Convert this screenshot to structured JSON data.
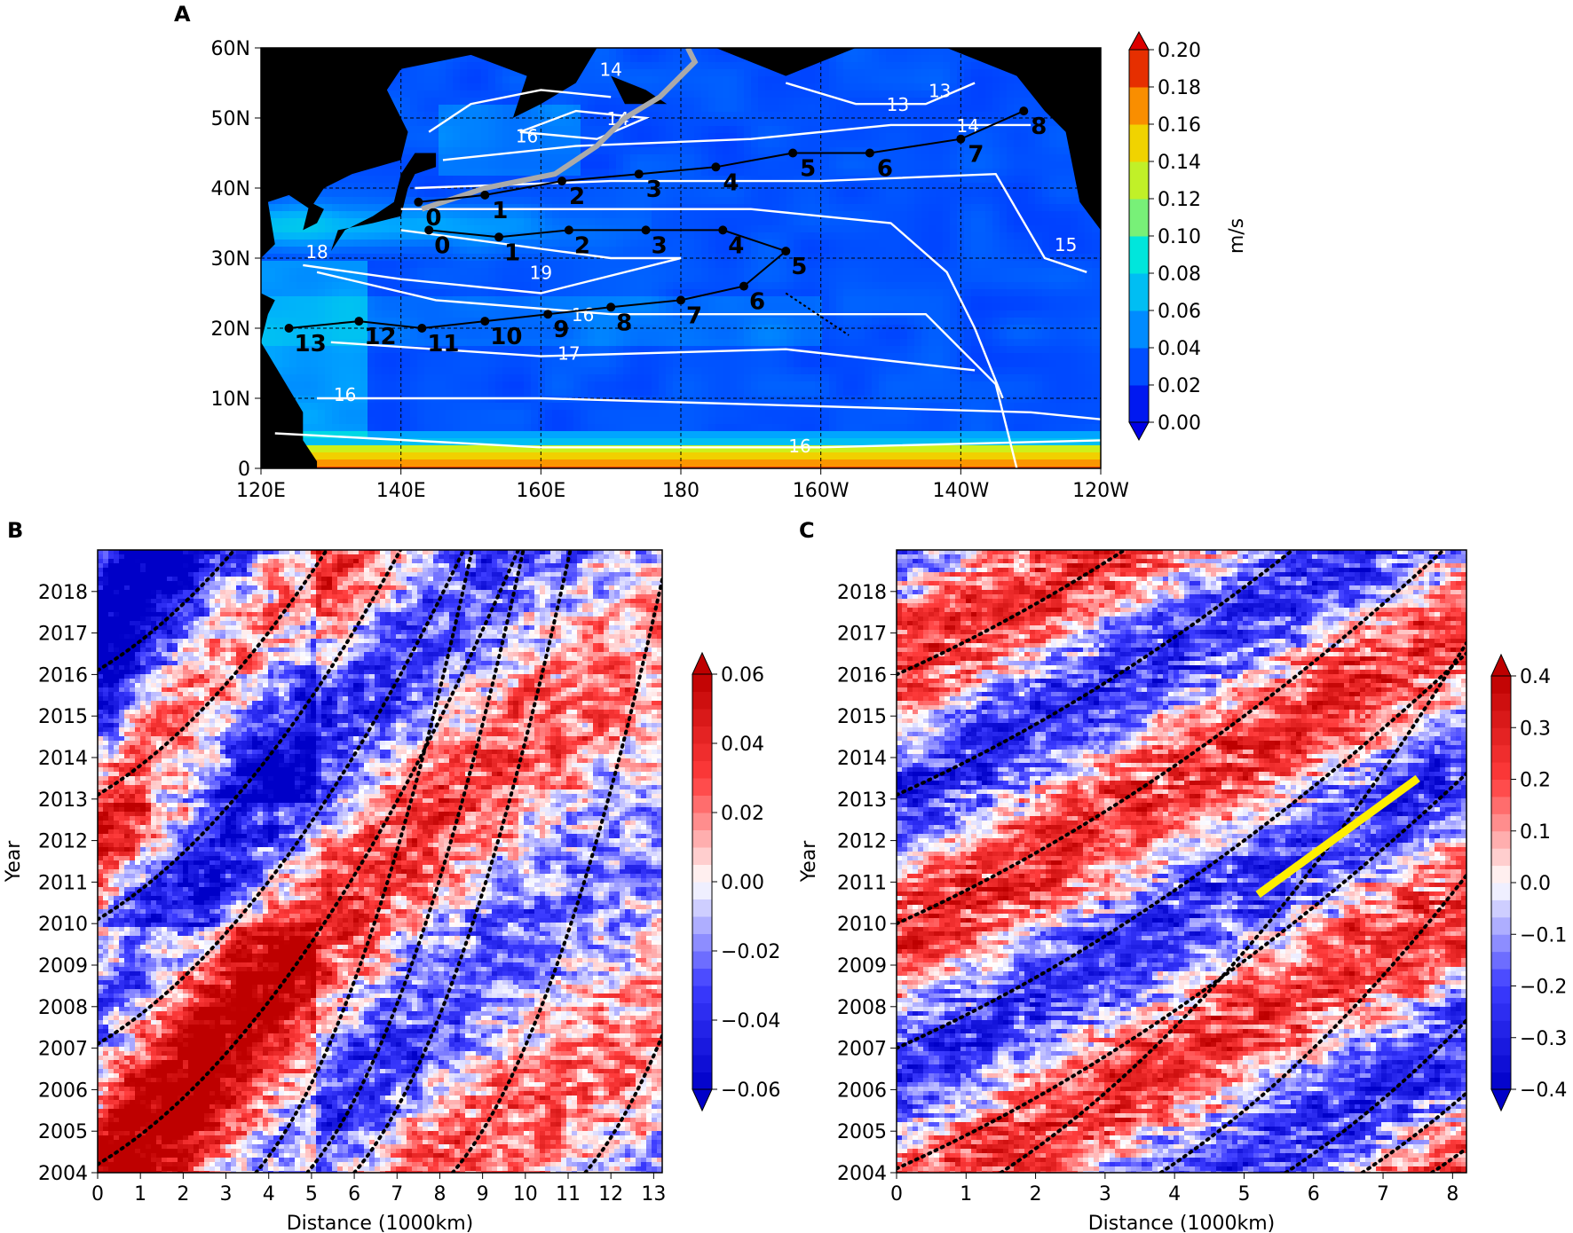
{
  "panels": {
    "A": {
      "letter": "A",
      "xticks": [
        "120E",
        "140E",
        "160E",
        "180",
        "160W",
        "140W",
        "120W"
      ],
      "yticks": [
        "0",
        "10N",
        "20N",
        "30N",
        "40N",
        "50N",
        "60N"
      ],
      "colorbar": {
        "label": "m/s",
        "ticks": [
          "0.00",
          "0.02",
          "0.04",
          "0.06",
          "0.08",
          "0.10",
          "0.12",
          "0.14",
          "0.16",
          "0.18",
          "0.20"
        ]
      },
      "contour_labels": [
        "14",
        "14",
        "13",
        "13",
        "14",
        "15",
        "16",
        "19",
        "18",
        "16",
        "17",
        "16",
        "16"
      ],
      "route_north_labels": [
        "0",
        "1",
        "2",
        "3",
        "4",
        "5",
        "6",
        "7",
        "8"
      ],
      "route_south_labels": [
        "0",
        "1",
        "2",
        "3",
        "4",
        "5",
        "6",
        "7",
        "8",
        "9",
        "10",
        "11",
        "12",
        "13"
      ]
    },
    "B": {
      "letter": "B",
      "ylabel": "Year",
      "xlabel": "Distance (1000km)",
      "xticks": [
        "0",
        "1",
        "2",
        "3",
        "4",
        "5",
        "6",
        "7",
        "8",
        "9",
        "10",
        "11",
        "12",
        "13"
      ],
      "yticks": [
        "2004",
        "2005",
        "2006",
        "2007",
        "2008",
        "2009",
        "2010",
        "2011",
        "2012",
        "2013",
        "2014",
        "2015",
        "2016",
        "2017",
        "2018"
      ],
      "colorbar": {
        "ticks": [
          "−0.06",
          "−0.04",
          "−0.02",
          "0.00",
          "0.02",
          "0.04",
          "0.06"
        ]
      }
    },
    "C": {
      "letter": "C",
      "ylabel": "Year",
      "xlabel": "Distance (1000km)",
      "xticks": [
        "0",
        "1",
        "2",
        "3",
        "4",
        "5",
        "6",
        "7",
        "8"
      ],
      "yticks": [
        "2004",
        "2005",
        "2006",
        "2007",
        "2008",
        "2009",
        "2010",
        "2011",
        "2012",
        "2013",
        "2014",
        "2015",
        "2016",
        "2017",
        "2018"
      ],
      "colorbar": {
        "ticks": [
          "−0.4",
          "−0.3",
          "−0.2",
          "−0.1",
          "0.0",
          "0.1",
          "0.2",
          "0.3",
          "0.4"
        ]
      }
    }
  },
  "chart_data": [
    {
      "type": "heatmap",
      "panel": "A",
      "xlim": [
        120,
        240
      ],
      "ylim": [
        0,
        60
      ],
      "colorbar_range": [
        0,
        0.2
      ],
      "unit": "m/s",
      "route_north": [
        [
          142.5,
          38
        ],
        [
          152,
          39
        ],
        [
          163,
          41
        ],
        [
          174,
          42
        ],
        [
          185,
          43
        ],
        [
          196,
          45
        ],
        [
          207,
          45
        ],
        [
          220,
          47
        ],
        [
          229,
          51
        ]
      ],
      "route_south": [
        [
          144,
          34
        ],
        [
          154,
          33
        ],
        [
          164,
          34
        ],
        [
          175,
          34
        ],
        [
          186,
          34
        ],
        [
          195,
          31
        ],
        [
          189,
          26
        ],
        [
          180,
          24
        ],
        [
          170,
          23
        ],
        [
          161,
          22
        ],
        [
          152,
          21
        ],
        [
          143,
          20
        ],
        [
          134,
          21
        ],
        [
          124,
          20
        ]
      ],
      "colors": {
        "north_track": "#aaaaaa",
        "route": "#000000",
        "contours": "#ffffff"
      }
    },
    {
      "type": "heatmap",
      "panel": "B",
      "xlim": [
        0,
        13.2
      ],
      "ylim": [
        2004,
        2019
      ],
      "colorbar_range": [
        -0.06,
        0.06
      ],
      "colormap": "seismic"
    },
    {
      "type": "heatmap",
      "panel": "C",
      "xlim": [
        0,
        8.2
      ],
      "ylim": [
        2004,
        2019
      ],
      "colorbar_range": [
        -0.4,
        0.4
      ],
      "colormap": "seismic",
      "highlight_line": {
        "from": [
          5.2,
          2010.7
        ],
        "to": [
          7.5,
          2013.5
        ],
        "color": "#ffee00"
      }
    }
  ]
}
